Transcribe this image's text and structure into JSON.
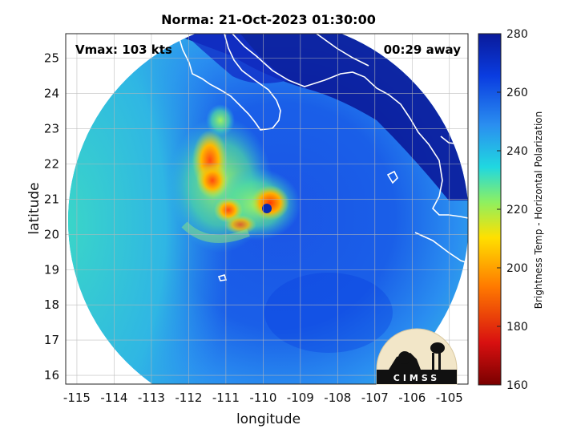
{
  "figure": {
    "title": "Norma: 21-Oct-2023 01:30:00",
    "xlabel": "longitude",
    "ylabel": "latitude",
    "vmax_label": "Vmax: 103 kts",
    "time_label": "00:29 away",
    "logo_text": "CIMSS"
  },
  "colorbar": {
    "label": "Brightness Temp - Horizontal Polarization",
    "ticks": [
      "160",
      "180",
      "200",
      "220",
      "240",
      "260",
      "280"
    ],
    "range": [
      160,
      280
    ],
    "colors": [
      "#7a0000",
      "#d81010",
      "#ff7a00",
      "#ffe000",
      "#8ef060",
      "#20d8e0",
      "#2a8ef0",
      "#0a3ce0",
      "#0a1a9a"
    ]
  },
  "axes": {
    "x_ticks": [
      "-115",
      "-114",
      "-113",
      "-112",
      "-111",
      "-110",
      "-109",
      "-108",
      "-107",
      "-106",
      "-105"
    ],
    "y_ticks": [
      "16",
      "17",
      "18",
      "19",
      "20",
      "21",
      "22",
      "23",
      "24",
      "25"
    ],
    "xlim": [
      -115.3,
      -104.5
    ],
    "ylim": [
      15.75,
      25.7
    ],
    "grid": true
  },
  "storm": {
    "name": "Norma",
    "center_lon": -109.85,
    "center_lat": 20.85
  },
  "colors": {
    "background_disk": "#3ad0d8",
    "warm_band": "#ff8c00",
    "cold_water": "#0a1a9a",
    "coastline": "#ffffff"
  }
}
